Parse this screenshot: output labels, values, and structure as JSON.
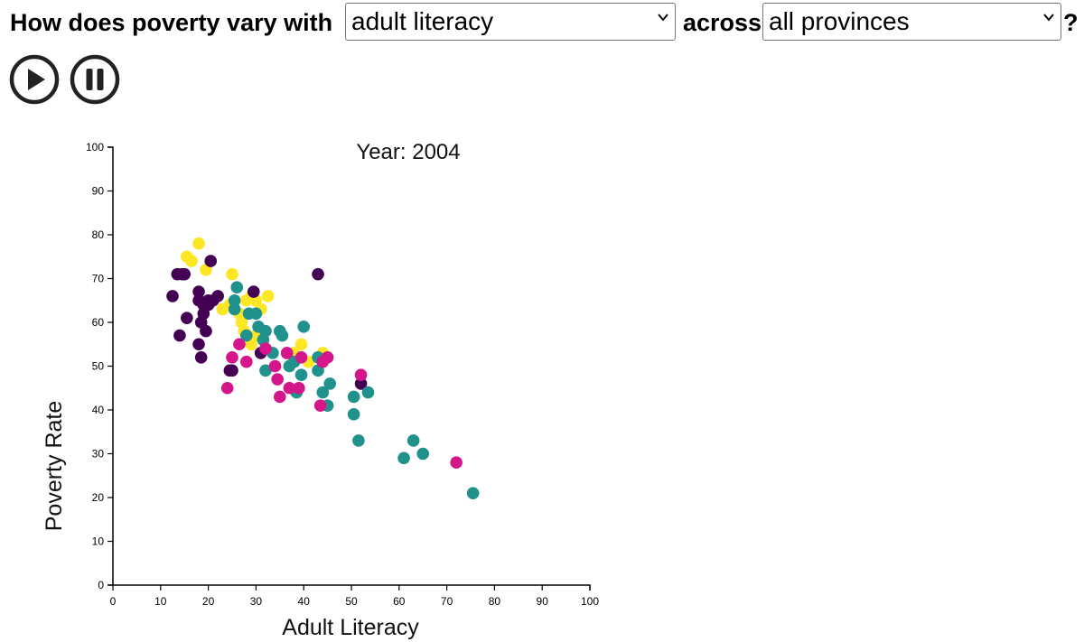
{
  "question": {
    "prefix": "How does poverty vary with",
    "middle": "across",
    "suffix": "?",
    "indicator_select": "adult literacy",
    "region_select": "all provinces"
  },
  "controls": {
    "play_icon": "play-circle-icon",
    "pause_icon": "pause-circle-icon"
  },
  "chart_data": {
    "type": "scatter",
    "title": "Year: 2004",
    "xlabel": "Adult Literacy",
    "ylabel": "Poverty Rate",
    "xlim": [
      0,
      100
    ],
    "ylim": [
      0,
      100
    ],
    "xticks": [
      0,
      10,
      20,
      30,
      40,
      50,
      60,
      70,
      80,
      90,
      100
    ],
    "yticks": [
      0,
      10,
      20,
      30,
      40,
      50,
      60,
      70,
      80,
      90,
      100
    ],
    "grid": false,
    "legend": "none",
    "colors": [
      "#440154",
      "#21918c",
      "#fde725",
      "#d4168a"
    ],
    "series": [
      {
        "color": "#fde725",
        "points": [
          [
            15.5,
            75
          ],
          [
            16.5,
            74
          ],
          [
            18,
            78
          ],
          [
            19.5,
            72
          ],
          [
            25,
            71
          ],
          [
            23,
            63
          ],
          [
            24.5,
            64
          ],
          [
            26.5,
            62
          ],
          [
            27,
            60
          ],
          [
            28,
            65
          ],
          [
            29,
            66
          ],
          [
            30,
            65
          ],
          [
            31,
            63
          ],
          [
            32.5,
            66
          ],
          [
            27.5,
            58
          ],
          [
            29,
            55
          ],
          [
            30,
            57
          ],
          [
            38,
            53
          ],
          [
            39.5,
            55
          ],
          [
            41,
            51
          ],
          [
            44,
            53
          ],
          [
            45,
            52
          ]
        ]
      },
      {
        "color": "#440154",
        "points": [
          [
            12.5,
            66
          ],
          [
            13.5,
            71
          ],
          [
            14.5,
            71
          ],
          [
            15,
            71
          ],
          [
            14,
            57
          ],
          [
            15.5,
            61
          ],
          [
            18,
            65
          ],
          [
            18,
            67
          ],
          [
            18.5,
            60
          ],
          [
            19,
            62
          ],
          [
            19,
            64
          ],
          [
            19.5,
            58
          ],
          [
            20,
            65
          ],
          [
            18,
            55
          ],
          [
            18.5,
            52
          ],
          [
            20,
            64
          ],
          [
            21,
            65
          ],
          [
            22,
            66
          ],
          [
            20.5,
            74
          ],
          [
            24.5,
            49
          ],
          [
            25,
            49
          ],
          [
            29.5,
            67
          ],
          [
            31,
            53
          ],
          [
            43,
            71
          ],
          [
            52,
            46
          ]
        ]
      },
      {
        "color": "#21918c",
        "points": [
          [
            25.5,
            65
          ],
          [
            26,
            68
          ],
          [
            25.5,
            63
          ],
          [
            28,
            57
          ],
          [
            28.5,
            62
          ],
          [
            30,
            62
          ],
          [
            30.5,
            59
          ],
          [
            31.5,
            56
          ],
          [
            32,
            58
          ],
          [
            32,
            49
          ],
          [
            33.5,
            53
          ],
          [
            35,
            58
          ],
          [
            35.5,
            57
          ],
          [
            36.5,
            53
          ],
          [
            37,
            50
          ],
          [
            38,
            51
          ],
          [
            38.5,
            44
          ],
          [
            39.5,
            48
          ],
          [
            40,
            59
          ],
          [
            43,
            52
          ],
          [
            43,
            49
          ],
          [
            44,
            44
          ],
          [
            45,
            41
          ],
          [
            45.5,
            46
          ],
          [
            50.5,
            43
          ],
          [
            50.5,
            39
          ],
          [
            51.5,
            33
          ],
          [
            53.5,
            44
          ],
          [
            61,
            29
          ],
          [
            63,
            33
          ],
          [
            65,
            30
          ],
          [
            75.5,
            21
          ]
        ]
      },
      {
        "color": "#d4168a",
        "points": [
          [
            24,
            45
          ],
          [
            25,
            52
          ],
          [
            26.5,
            55
          ],
          [
            28,
            51
          ],
          [
            32,
            54
          ],
          [
            34,
            50
          ],
          [
            34.5,
            47
          ],
          [
            35,
            43
          ],
          [
            36.5,
            53
          ],
          [
            37,
            45
          ],
          [
            39,
            45
          ],
          [
            39.5,
            52
          ],
          [
            44,
            51
          ],
          [
            45,
            52
          ],
          [
            43.5,
            41
          ],
          [
            52,
            48
          ],
          [
            72,
            28
          ]
        ]
      }
    ]
  }
}
